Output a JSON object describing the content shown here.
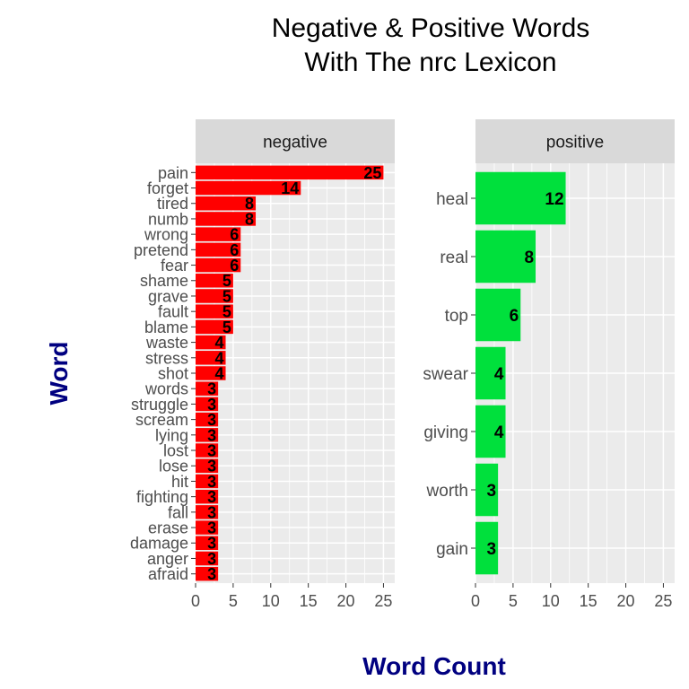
{
  "chart_data": {
    "type": "bar",
    "orientation": "horizontal",
    "title": [
      "Negative & Positive Words",
      "With The nrc Lexicon"
    ],
    "xlabel": "Word Count",
    "ylabel": "Word",
    "xlim": [
      0,
      26.5
    ],
    "x_ticks": [
      0,
      5,
      10,
      15,
      20,
      25
    ],
    "grid": true,
    "legend": "none",
    "facets": [
      {
        "name": "negative",
        "color": "#ff0000",
        "categories": [
          "pain",
          "forget",
          "tired",
          "numb",
          "wrong",
          "pretend",
          "fear",
          "shame",
          "grave",
          "fault",
          "blame",
          "waste",
          "stress",
          "shot",
          "words",
          "struggle",
          "scream",
          "lying",
          "lost",
          "lose",
          "hit",
          "fighting",
          "fall",
          "erase",
          "damage",
          "anger",
          "afraid"
        ],
        "values": [
          25,
          14,
          8,
          8,
          6,
          6,
          6,
          5,
          5,
          5,
          5,
          4,
          4,
          4,
          3,
          3,
          3,
          3,
          3,
          3,
          3,
          3,
          3,
          3,
          3,
          3,
          3
        ]
      },
      {
        "name": "positive",
        "color": "#00e03c",
        "categories": [
          "heal",
          "real",
          "top",
          "swear",
          "giving",
          "worth",
          "gain"
        ],
        "values": [
          12,
          8,
          6,
          4,
          4,
          3,
          3
        ]
      }
    ]
  }
}
